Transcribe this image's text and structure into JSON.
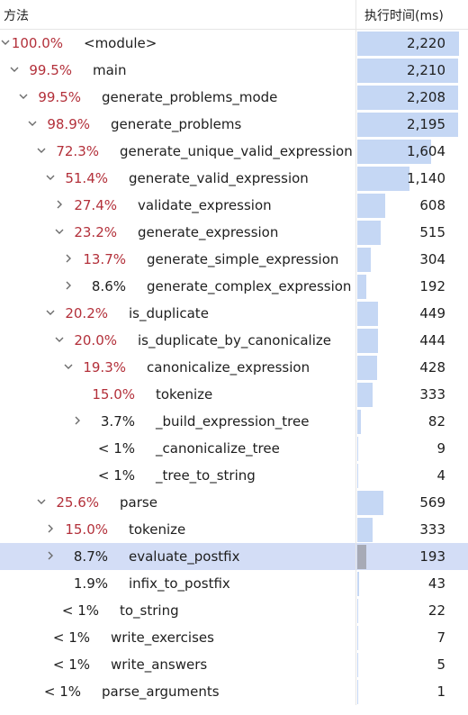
{
  "header": {
    "method_label": "方法",
    "time_label": "执行时间(ms)"
  },
  "max_time": 2220,
  "rows": [
    {
      "pct": "100.0%",
      "name": "<module>",
      "time": 2220,
      "time_text": "2,220",
      "depth": 0,
      "chevron": "down",
      "pct_color": "red"
    },
    {
      "pct": "99.5%",
      "name": "main",
      "time": 2210,
      "time_text": "2,210",
      "depth": 1,
      "chevron": "down",
      "pct_color": "red"
    },
    {
      "pct": "99.5%",
      "name": "generate_problems_mode",
      "time": 2208,
      "time_text": "2,208",
      "depth": 2,
      "chevron": "down",
      "pct_color": "red"
    },
    {
      "pct": "98.9%",
      "name": "generate_problems",
      "time": 2195,
      "time_text": "2,195",
      "depth": 3,
      "chevron": "down",
      "pct_color": "red"
    },
    {
      "pct": "72.3%",
      "name": "generate_unique_valid_expression",
      "time": 1604,
      "time_text": "1,604",
      "depth": 4,
      "chevron": "down",
      "pct_color": "red"
    },
    {
      "pct": "51.4%",
      "name": "generate_valid_expression",
      "time": 1140,
      "time_text": "1,140",
      "depth": 5,
      "chevron": "down",
      "pct_color": "red"
    },
    {
      "pct": "27.4%",
      "name": "validate_expression",
      "time": 608,
      "time_text": "608",
      "depth": 6,
      "chevron": "right",
      "pct_color": "red"
    },
    {
      "pct": "23.2%",
      "name": "generate_expression",
      "time": 515,
      "time_text": "515",
      "depth": 6,
      "chevron": "down",
      "pct_color": "red"
    },
    {
      "pct": "13.7%",
      "name": "generate_simple_expression",
      "time": 304,
      "time_text": "304",
      "depth": 7,
      "chevron": "right",
      "pct_color": "red"
    },
    {
      "pct": "8.6%",
      "name": "generate_complex_expression",
      "time": 192,
      "time_text": "192",
      "depth": 7,
      "chevron": "right",
      "pct_color": "dark"
    },
    {
      "pct": "20.2%",
      "name": "is_duplicate",
      "time": 449,
      "time_text": "449",
      "depth": 5,
      "chevron": "down",
      "pct_color": "red"
    },
    {
      "pct": "20.0%",
      "name": "is_duplicate_by_canonicalize",
      "time": 444,
      "time_text": "444",
      "depth": 6,
      "chevron": "down",
      "pct_color": "red"
    },
    {
      "pct": "19.3%",
      "name": "canonicalize_expression",
      "time": 428,
      "time_text": "428",
      "depth": 7,
      "chevron": "down",
      "pct_color": "red"
    },
    {
      "pct": "15.0%",
      "name": "tokenize",
      "time": 333,
      "time_text": "333",
      "depth": 8,
      "chevron": "none",
      "pct_color": "red"
    },
    {
      "pct": "3.7%",
      "name": "_build_expression_tree",
      "time": 82,
      "time_text": "82",
      "depth": 8,
      "chevron": "right",
      "pct_color": "dark"
    },
    {
      "pct": "< 1%",
      "name": "_canonicalize_tree",
      "time": 9,
      "time_text": "9",
      "depth": 8,
      "chevron": "none",
      "pct_color": "dark"
    },
    {
      "pct": "< 1%",
      "name": "_tree_to_string",
      "time": 4,
      "time_text": "4",
      "depth": 8,
      "chevron": "none",
      "pct_color": "dark"
    },
    {
      "pct": "25.6%",
      "name": "parse",
      "time": 569,
      "time_text": "569",
      "depth": 4,
      "chevron": "down",
      "pct_color": "red"
    },
    {
      "pct": "15.0%",
      "name": "tokenize",
      "time": 333,
      "time_text": "333",
      "depth": 5,
      "chevron": "right",
      "pct_color": "red"
    },
    {
      "pct": "8.7%",
      "name": "evaluate_postfix",
      "time": 193,
      "time_text": "193",
      "depth": 5,
      "chevron": "right",
      "pct_color": "dark",
      "selected": true
    },
    {
      "pct": "1.9%",
      "name": "infix_to_postfix",
      "time": 43,
      "time_text": "43",
      "depth": 5,
      "chevron": "none",
      "pct_color": "dark"
    },
    {
      "pct": "< 1%",
      "name": "to_string",
      "time": 22,
      "time_text": "22",
      "depth": 4,
      "chevron": "none",
      "pct_color": "dark"
    },
    {
      "pct": "< 1%",
      "name": "write_exercises",
      "time": 7,
      "time_text": "7",
      "depth": 3,
      "chevron": "none",
      "pct_color": "dark"
    },
    {
      "pct": "< 1%",
      "name": "write_answers",
      "time": 5,
      "time_text": "5",
      "depth": 3,
      "chevron": "none",
      "pct_color": "dark"
    },
    {
      "pct": "< 1%",
      "name": "parse_arguments",
      "time": 1,
      "time_text": "1",
      "depth": 2,
      "chevron": "none",
      "pct_color": "dark"
    }
  ]
}
